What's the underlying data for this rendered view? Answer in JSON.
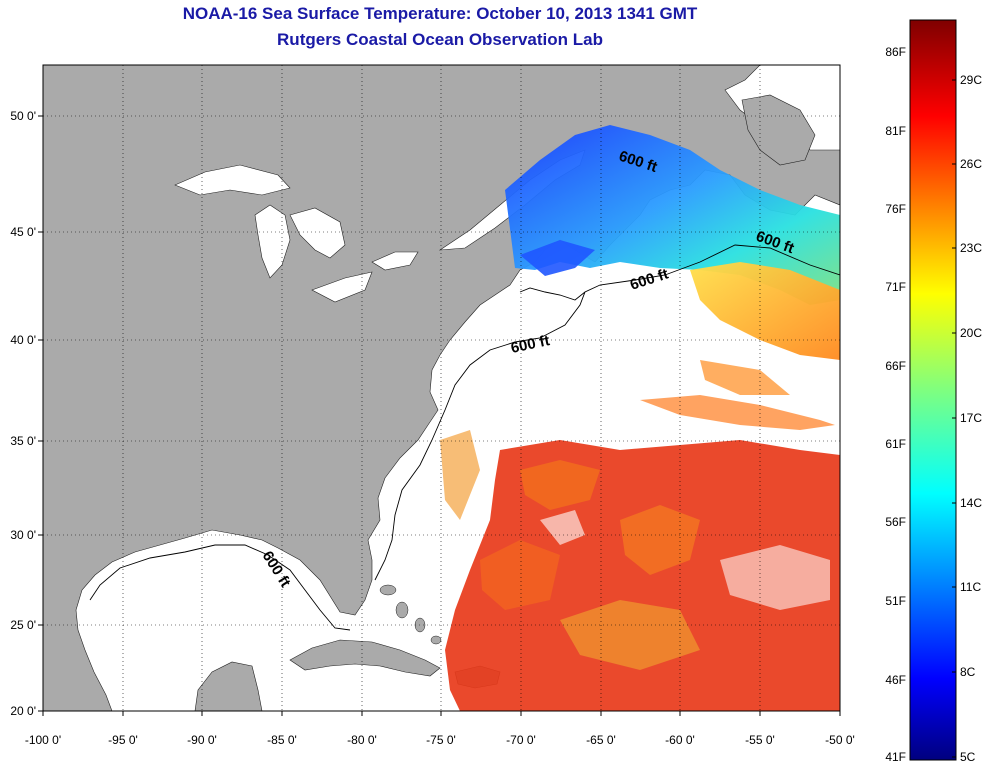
{
  "title": "NOAA-16 Sea Surface Temperature:  October 10, 2013 1341 GMT",
  "subtitle": "Rutgers Coastal Ocean Observation Lab",
  "map": {
    "lat_labels": [
      "50 0'",
      "45 0'",
      "40 0'",
      "35 0'",
      "30 0'",
      "25 0'",
      "20 0'"
    ],
    "lon_labels": [
      "-100 0'",
      "-95 0'",
      "-90 0'",
      "-85 0'",
      "-80 0'",
      "-75 0'",
      "-70 0'",
      "-65 0'",
      "-60 0'",
      "-55 0'",
      "-50 0'"
    ],
    "contour_label": "600 ft",
    "land_color": "#aaaaaa",
    "water_color": "#ffffff"
  },
  "colorbar": {
    "fahrenheit_labels": [
      "86F",
      "81F",
      "76F",
      "71F",
      "66F",
      "61F",
      "56F",
      "51F",
      "46F",
      "41F"
    ],
    "celsius_labels": [
      "29C",
      "26C",
      "23C",
      "20C",
      "17C",
      "14C",
      "11C",
      "8C",
      "5C"
    ],
    "range_c": [
      5,
      31
    ],
    "colormap": "jet"
  }
}
